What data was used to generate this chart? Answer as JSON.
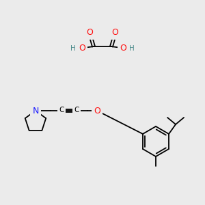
{
  "bg_color": "#ebebeb",
  "atom_colors": {
    "C": "#000000",
    "N": "#1a1aff",
    "O": "#ff0d0d",
    "H": "#4a8a8a"
  },
  "bond_color": "#000000",
  "bond_lw": 1.3,
  "double_sep": 1.8,
  "triple_sep": 2.2,
  "font_size": 8.5
}
